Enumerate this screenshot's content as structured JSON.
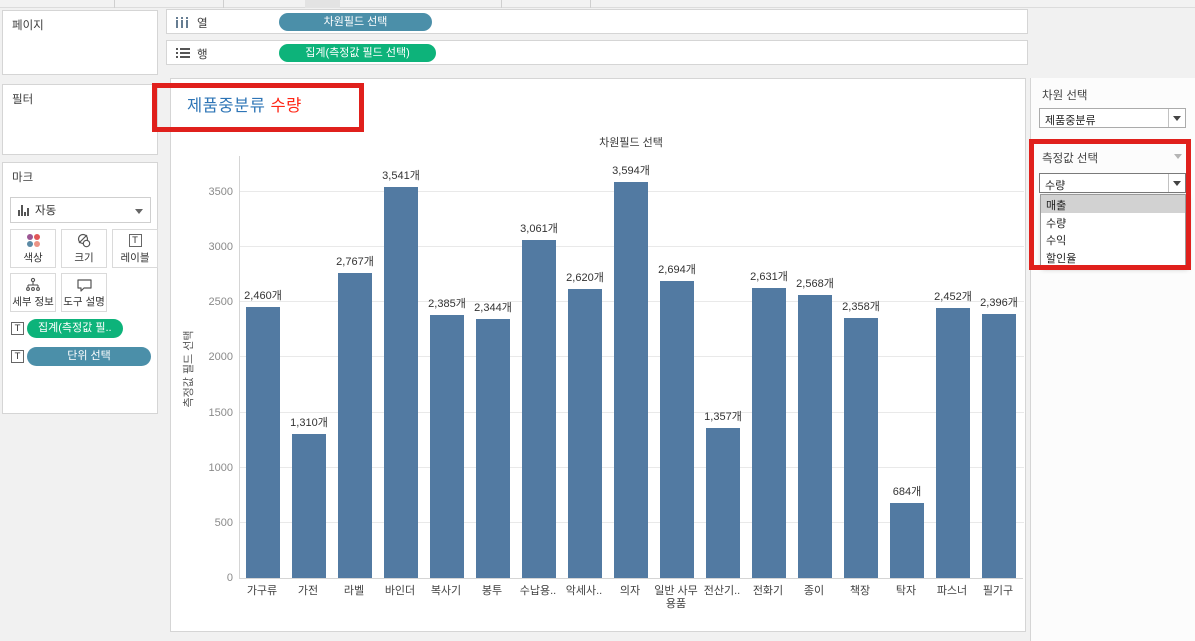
{
  "colors": {
    "bar": "#527aa2",
    "pill_blue": "#4b8fa9",
    "pill_green": "#0db37a",
    "title_dimension": "#2e75b6",
    "title_measure": "#ff2616",
    "annotation_red": "#e0201c",
    "option_highlight": "#d2d2d2"
  },
  "pages": {
    "label": "페이지"
  },
  "filters": {
    "label": "필터"
  },
  "marks": {
    "label": "마크",
    "mark_type_value": "자동",
    "buttons": {
      "color": "색상",
      "size": "크기",
      "text_label": "레이블",
      "detail": "세부 정보",
      "tooltip": "도구 설명"
    },
    "pills": [
      {
        "label": "집계(측정값 필..",
        "color": "green"
      },
      {
        "label": "단위 선택",
        "color": "blue"
      }
    ]
  },
  "shelves": {
    "columns": {
      "label": "열",
      "pill": "차원필드 선택"
    },
    "rows": {
      "label": "행",
      "pill": "집계(측정값 필드 선택)"
    }
  },
  "sheet": {
    "title_dimension": "제품중분류",
    "title_measure": "수량"
  },
  "parameters": {
    "dimension": {
      "label": "차원 선택",
      "value": "제품중분류"
    },
    "measure": {
      "label": "측정값 선택",
      "value": "수량",
      "options": [
        "매출",
        "수량",
        "수익",
        "할인율"
      ],
      "highlighted_option": "매출"
    }
  },
  "chart_data": {
    "type": "bar",
    "title": "차원필드 선택",
    "categories": [
      "가구류",
      "가전",
      "라벨",
      "바인더",
      "복사기",
      "봉투",
      "수납용..",
      "악세사..",
      "의자",
      "일반 사무용품",
      "전산기..",
      "전화기",
      "종이",
      "책장",
      "탁자",
      "파스너",
      "필기구"
    ],
    "values": [
      2460,
      1310,
      2767,
      3541,
      2385,
      2344,
      3061,
      2620,
      3594,
      2694,
      1357,
      2631,
      2568,
      2358,
      684,
      2452,
      2396
    ],
    "value_labels": [
      "2,460개",
      "1,310개",
      "2,767개",
      "3,541개",
      "2,385개",
      "2,344개",
      "3,061개",
      "2,620개",
      "3,594개",
      "2,694개",
      "1,357개",
      "2,631개",
      "2,568개",
      "2,358개",
      "684개",
      "2,452개",
      "2,396개"
    ],
    "unit_suffix": "개",
    "xlabel": "",
    "ylabel": "측정값 필드 선택",
    "yticks": [
      0,
      500,
      1000,
      1500,
      2000,
      2500,
      3000,
      3500
    ],
    "ylim": [
      0,
      3835
    ],
    "grid": true,
    "legend": "none"
  }
}
